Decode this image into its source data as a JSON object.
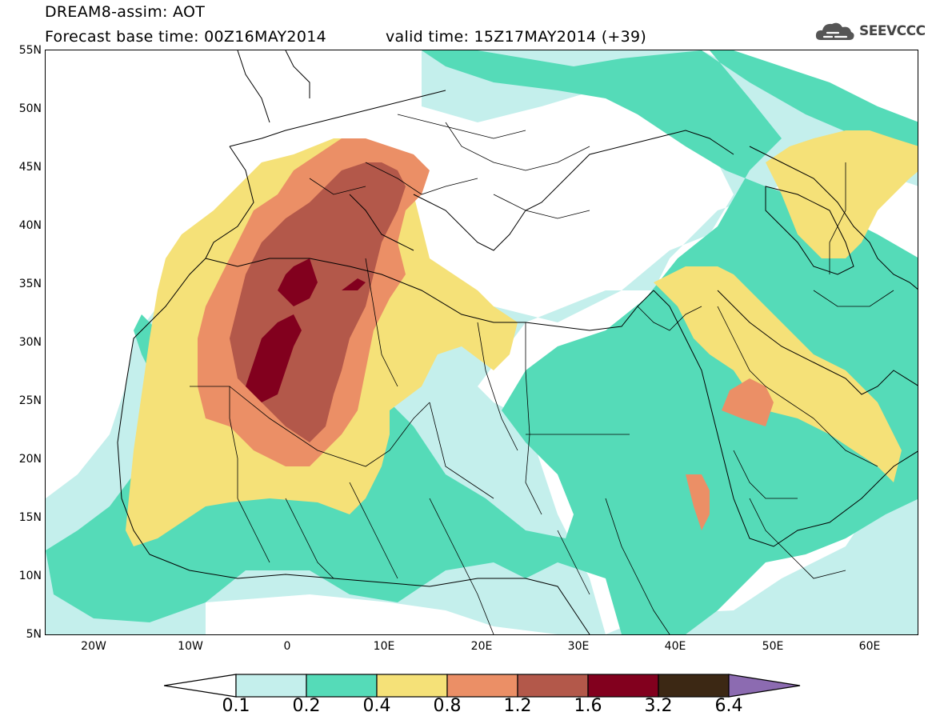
{
  "header": {
    "title_line1": "DREAM8-assim: AOT",
    "title_line2": "Forecast base time: 00Z16MAY2014",
    "valid_time": "valid time: 15Z17MAY2014 (+39)",
    "logo_text": "SEEVCCC"
  },
  "axes": {
    "lat_labels": [
      "55N",
      "50N",
      "45N",
      "40N",
      "35N",
      "30N",
      "25N",
      "20N",
      "15N",
      "10N",
      "5N"
    ],
    "lon_labels": [
      "20W",
      "10W",
      "0",
      "10E",
      "20E",
      "30E",
      "40E",
      "50E",
      "60E"
    ]
  },
  "legend": {
    "labels": [
      "0.1",
      "0.2",
      "0.4",
      "0.8",
      "1.2",
      "1.6",
      "3.2",
      "6.4"
    ],
    "colors": [
      "#c4efec",
      "#55dbb8",
      "#f5e178",
      "#eb8f66",
      "#b3584a",
      "#82001e",
      "#3c2814",
      "#8c6bb1"
    ]
  },
  "map": {
    "region": "North Africa, Europe and Middle East",
    "variable": "AOT"
  }
}
